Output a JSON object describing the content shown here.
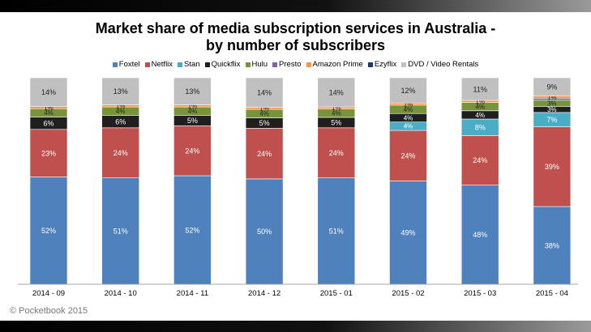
{
  "credit": "© Pocketbook 2015",
  "chart_data": {
    "type": "bar",
    "stacked": true,
    "normalized": true,
    "title_lines": [
      "Market share of media subscription services in Australia -",
      "by number of subscribers"
    ],
    "xlabel": "",
    "ylabel": "",
    "ylim": [
      0,
      100
    ],
    "grid": false,
    "legend_position": "top",
    "categories": [
      "2014 - 09",
      "2014 - 10",
      "2014 - 11",
      "2014 - 12",
      "2015 - 01",
      "2015 - 02",
      "2015 - 03",
      "2015 - 04"
    ],
    "series": [
      {
        "name": "Foxtel",
        "color": "#4f81bd",
        "values": [
          52,
          51,
          52,
          50,
          51,
          49,
          48,
          38
        ],
        "labels": [
          "52%",
          "51%",
          "52%",
          "50%",
          "51%",
          "49%",
          "48%",
          "38%"
        ]
      },
      {
        "name": "Netflix",
        "color": "#c0504d",
        "values": [
          23,
          24,
          24,
          24,
          24,
          24,
          24,
          39
        ],
        "labels": [
          "23%",
          "24%",
          "24%",
          "24%",
          "24%",
          "24%",
          "24%",
          "39%"
        ]
      },
      {
        "name": "Stan",
        "color": "#4bacc6",
        "values": [
          0,
          0,
          0,
          0,
          0,
          4,
          8,
          7
        ],
        "labels": [
          "",
          "",
          "",
          "",
          "",
          "4%",
          "8%",
          "7%"
        ]
      },
      {
        "name": "Quickflix",
        "color": "#1f1f1f",
        "values": [
          6,
          6,
          5,
          5,
          5,
          4,
          4,
          3
        ],
        "labels": [
          "6%",
          "6%",
          "5%",
          "5%",
          "5%",
          "4%",
          "4%",
          "3%"
        ]
      },
      {
        "name": "Hulu",
        "color": "#77933c",
        "values": [
          4,
          4,
          4,
          4,
          4,
          4,
          4,
          3
        ],
        "labels": [
          "4%",
          "4%",
          "4%",
          "4%",
          "4%",
          "4%",
          "4%",
          "3%"
        ]
      },
      {
        "name": "Presto",
        "color": "#8064a2",
        "values": [
          0,
          0,
          0,
          0,
          0,
          0,
          0,
          1
        ],
        "labels": [
          "",
          "",
          "",
          "",
          "",
          "",
          "",
          ""
        ]
      },
      {
        "name": "Amazon Prime",
        "color": "#f79646",
        "values": [
          1,
          1,
          1,
          1,
          1,
          1,
          1,
          1
        ],
        "labels": [
          "1%",
          "1%",
          "1%",
          "1%",
          "1%",
          "1%",
          "1%",
          "1%"
        ]
      },
      {
        "name": "Ezyflix",
        "color": "#1f3864",
        "values": [
          0,
          0,
          0,
          0,
          0,
          0,
          0,
          0
        ],
        "labels": [
          "",
          "",
          "",
          "",
          "",
          "",
          "",
          ""
        ]
      },
      {
        "name": "DVD / Video Rentals",
        "color": "#c0c0c0",
        "values": [
          14,
          13,
          13,
          14,
          14,
          12,
          11,
          9
        ],
        "labels": [
          "14%",
          "13%",
          "13%",
          "14%",
          "14%",
          "12%",
          "11%",
          "9%"
        ]
      }
    ]
  }
}
